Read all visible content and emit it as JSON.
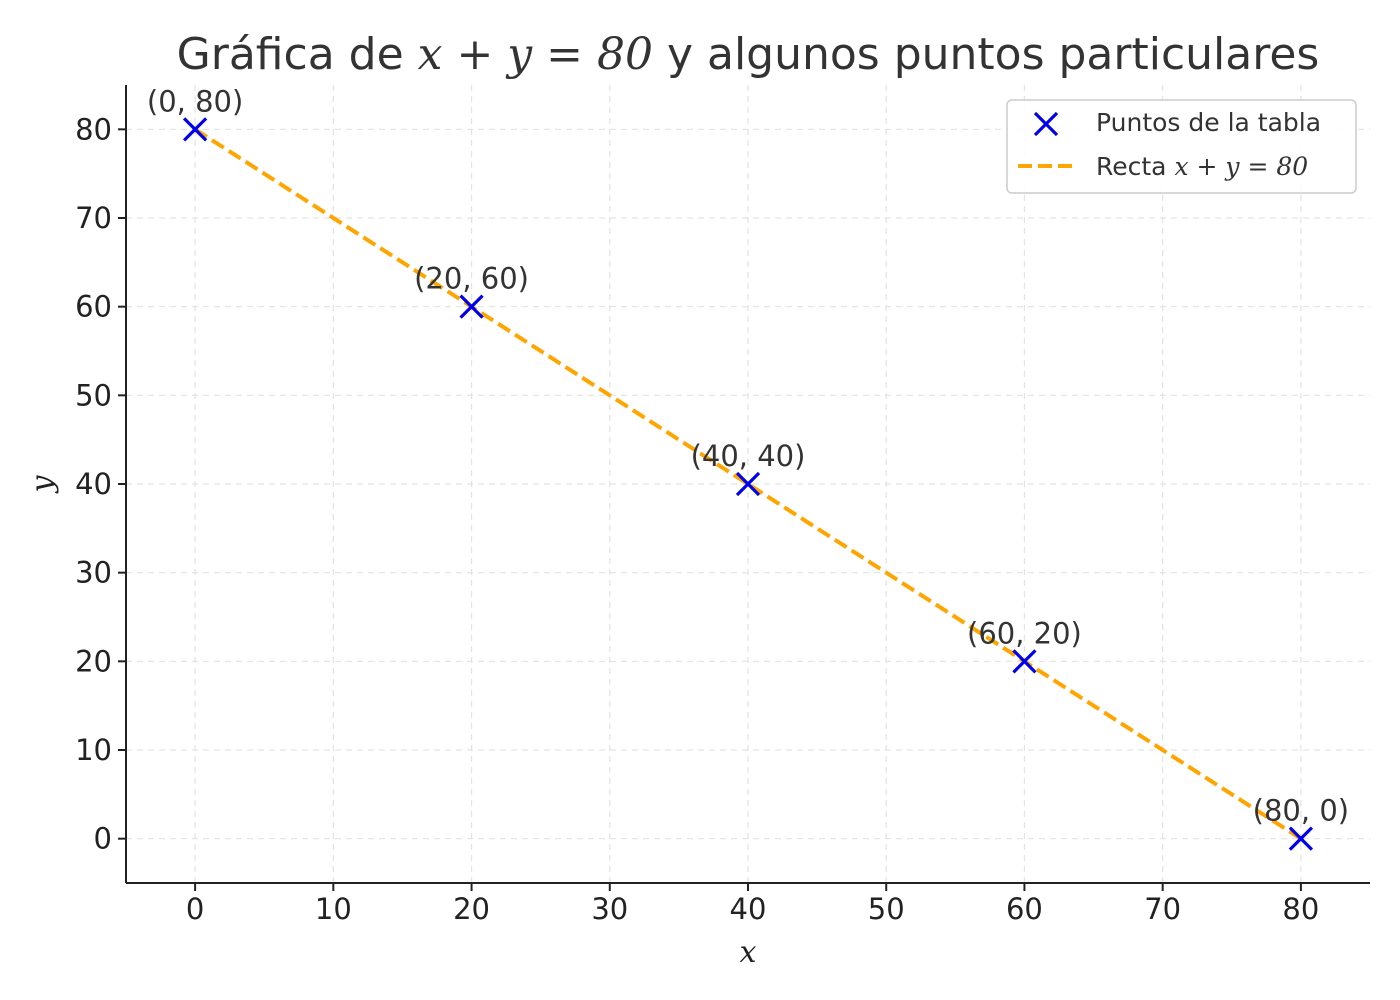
{
  "chart_data": {
    "type": "line",
    "title_prefix": "Gráfica de ",
    "title_math": "x + y = 80",
    "title_suffix": " y algunos puntos particulares",
    "xlabel": "x",
    "ylabel": "y",
    "xlim": [
      -5,
      85
    ],
    "ylim": [
      -5,
      85
    ],
    "xticks": [
      0,
      10,
      20,
      30,
      40,
      50,
      60,
      70,
      80
    ],
    "yticks": [
      0,
      10,
      20,
      30,
      40,
      50,
      60,
      70,
      80
    ],
    "grid": true,
    "legend_position": "top-right",
    "series": [
      {
        "name_text": "Puntos de la tabla",
        "kind": "scatter",
        "marker": "x",
        "color": "#0000ee",
        "points": [
          {
            "x": 0,
            "y": 80,
            "label": "(0, 80)"
          },
          {
            "x": 20,
            "y": 60,
            "label": "(20, 60)"
          },
          {
            "x": 40,
            "y": 40,
            "label": "(40, 40)"
          },
          {
            "x": 60,
            "y": 20,
            "label": "(60, 20)"
          },
          {
            "x": 80,
            "y": 0,
            "label": "(80, 0)"
          }
        ]
      },
      {
        "name_prefix": "Recta ",
        "name_math": "x + y = 80",
        "kind": "line",
        "style": "dashed",
        "color": "#ffa500",
        "x": [
          0,
          80
        ],
        "y": [
          80,
          0
        ]
      }
    ]
  }
}
